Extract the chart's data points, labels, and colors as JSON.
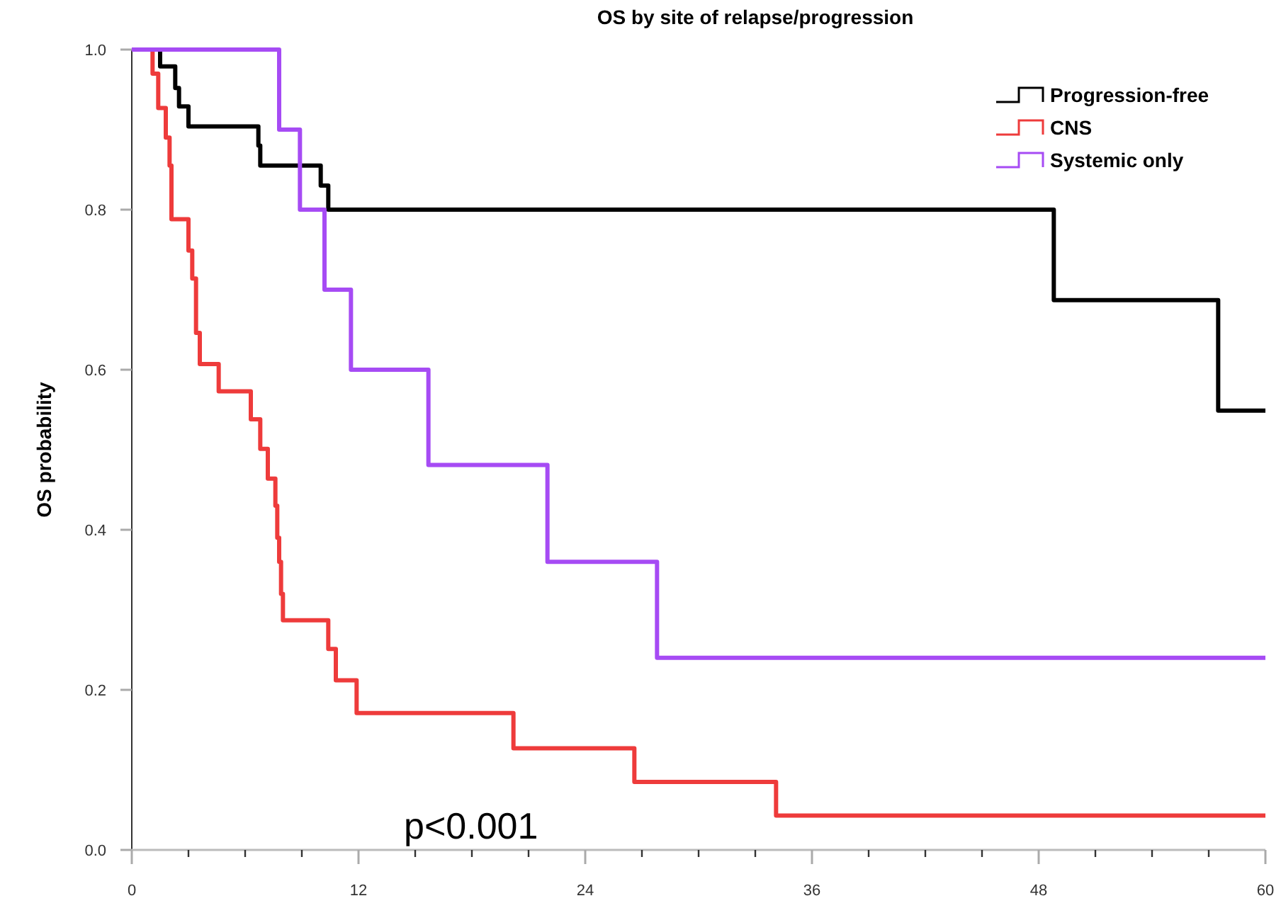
{
  "chart_data": {
    "type": "step",
    "title": "OS by site of relapse/progression",
    "ylabel": "OS probability",
    "xlim": [
      0,
      60
    ],
    "ylim": [
      0,
      1
    ],
    "xticks": [
      0,
      {
        "value": 3,
        "label": null
      },
      {
        "value": 6,
        "label": null
      },
      {
        "value": 9,
        "label": null
      },
      12,
      {
        "value": 15,
        "label": null
      },
      {
        "value": 18,
        "label": null
      },
      {
        "value": 21,
        "label": null
      },
      24,
      {
        "value": 27,
        "label": null
      },
      {
        "value": 30,
        "label": null
      },
      {
        "value": 33,
        "label": null
      },
      36,
      {
        "value": 39,
        "label": null
      },
      {
        "value": 42,
        "label": null
      },
      {
        "value": 45,
        "label": null
      },
      48,
      {
        "value": 51,
        "label": null
      },
      {
        "value": 54,
        "label": null
      },
      {
        "value": 57,
        "label": null
      },
      60
    ],
    "yticks": [
      {
        "value": 0,
        "label": "0.0"
      },
      {
        "value": 0.2,
        "label": "0.2"
      },
      {
        "value": 0.4,
        "label": "0.4"
      },
      {
        "value": 0.6,
        "label": "0.6"
      },
      {
        "value": 0.8,
        "label": "0.8"
      },
      {
        "value": 1,
        "label": "1.0"
      }
    ],
    "legend": "top right",
    "grid": false,
    "line_style": "solid",
    "annotations": [
      "p<0.001"
    ],
    "series": [
      {
        "name": "Progression-free",
        "color": "#000000",
        "x": [
          0,
          1.5,
          2.3,
          2.5,
          3.0,
          6.7,
          6.8,
          10.0,
          10.4,
          48.8,
          57.5,
          60
        ],
        "values": [
          1,
          0.979,
          0.952,
          0.929,
          0.904,
          0.88,
          0.855,
          0.83,
          0.8,
          0.687,
          0.549,
          0.549
        ]
      },
      {
        "name": "CNS",
        "color": "#ee3b3b",
        "x": [
          0,
          1.1,
          1.4,
          1.8,
          2.0,
          2.1,
          3.0,
          3.2,
          3.4,
          3.6,
          4.6,
          6.3,
          6.8,
          7.2,
          7.6,
          7.7,
          7.8,
          7.9,
          8.0,
          10.4,
          10.8,
          11.9,
          20.2,
          26.6,
          34.1,
          60
        ],
        "values": [
          1,
          0.97,
          0.927,
          0.89,
          0.855,
          0.788,
          0.749,
          0.714,
          0.646,
          0.607,
          0.573,
          0.538,
          0.501,
          0.464,
          0.43,
          0.39,
          0.36,
          0.32,
          0.287,
          0.251,
          0.212,
          0.171,
          0.127,
          0.085,
          0.043,
          0.043
        ]
      },
      {
        "name": "Systemic only",
        "color": "#a64bf4",
        "x": [
          0,
          7.8,
          8.9,
          10.2,
          11.6,
          15.7,
          22.0,
          27.8,
          60
        ],
        "values": [
          1,
          0.9,
          0.8,
          0.7,
          0.6,
          0.481,
          0.36,
          0.24,
          0.24
        ]
      }
    ]
  }
}
